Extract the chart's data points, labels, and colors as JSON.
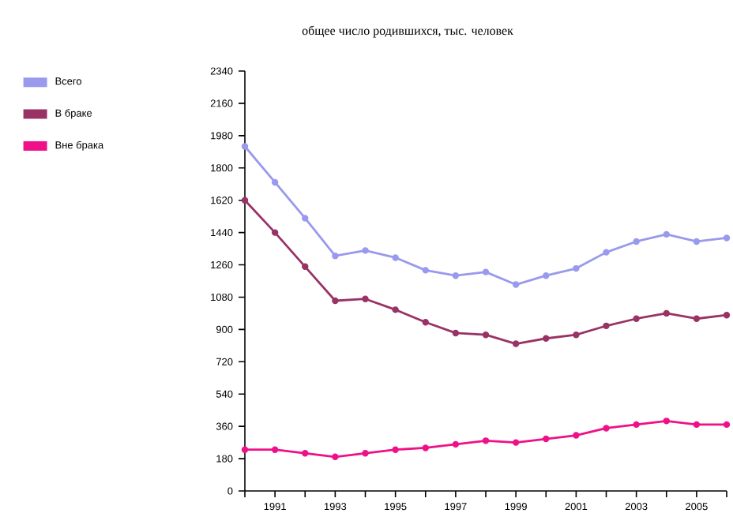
{
  "chart_data": {
    "type": "line",
    "title": "общее число родившихся, тыс. человек",
    "x": [
      1990,
      1991,
      1992,
      1993,
      1994,
      1995,
      1996,
      1997,
      1998,
      1999,
      2000,
      2001,
      2002,
      2003,
      2004,
      2005,
      2006
    ],
    "series": [
      {
        "name": "Всего",
        "color": "#9999ee",
        "values": [
          1920,
          1720,
          1520,
          1310,
          1340,
          1300,
          1230,
          1200,
          1220,
          1150,
          1200,
          1240,
          1330,
          1390,
          1430,
          1390,
          1410
        ]
      },
      {
        "name": "В браке",
        "color": "#993366",
        "values": [
          1620,
          1440,
          1250,
          1060,
          1070,
          1010,
          940,
          880,
          870,
          820,
          850,
          870,
          920,
          960,
          990,
          960,
          980
        ]
      },
      {
        "name": "Вне брака",
        "color": "#ee1188",
        "values": [
          230,
          230,
          210,
          190,
          210,
          230,
          240,
          260,
          280,
          270,
          290,
          310,
          350,
          370,
          390,
          370,
          370
        ]
      }
    ],
    "xlim": [
      1990,
      2006
    ],
    "xticks": [
      {
        "value": 1990,
        "label": null
      },
      1991,
      {
        "value": 1992,
        "label": null
      },
      1993,
      {
        "value": 1994,
        "label": null
      },
      1995,
      {
        "value": 1996,
        "label": null
      },
      1997,
      {
        "value": 1998,
        "label": null
      },
      1999,
      {
        "value": 2000,
        "label": null
      },
      2001,
      {
        "value": 2002,
        "label": null
      },
      2003,
      {
        "value": 2004,
        "label": null
      },
      2005,
      {
        "value": 2006,
        "label": null
      }
    ],
    "ylim": [
      0,
      2340
    ],
    "yticks": [
      0,
      180,
      360,
      540,
      720,
      900,
      1080,
      1260,
      1440,
      1620,
      1800,
      1980,
      2160,
      2340
    ],
    "legend": "top left",
    "marker": "circle",
    "line_style": "solid",
    "grid": false
  }
}
